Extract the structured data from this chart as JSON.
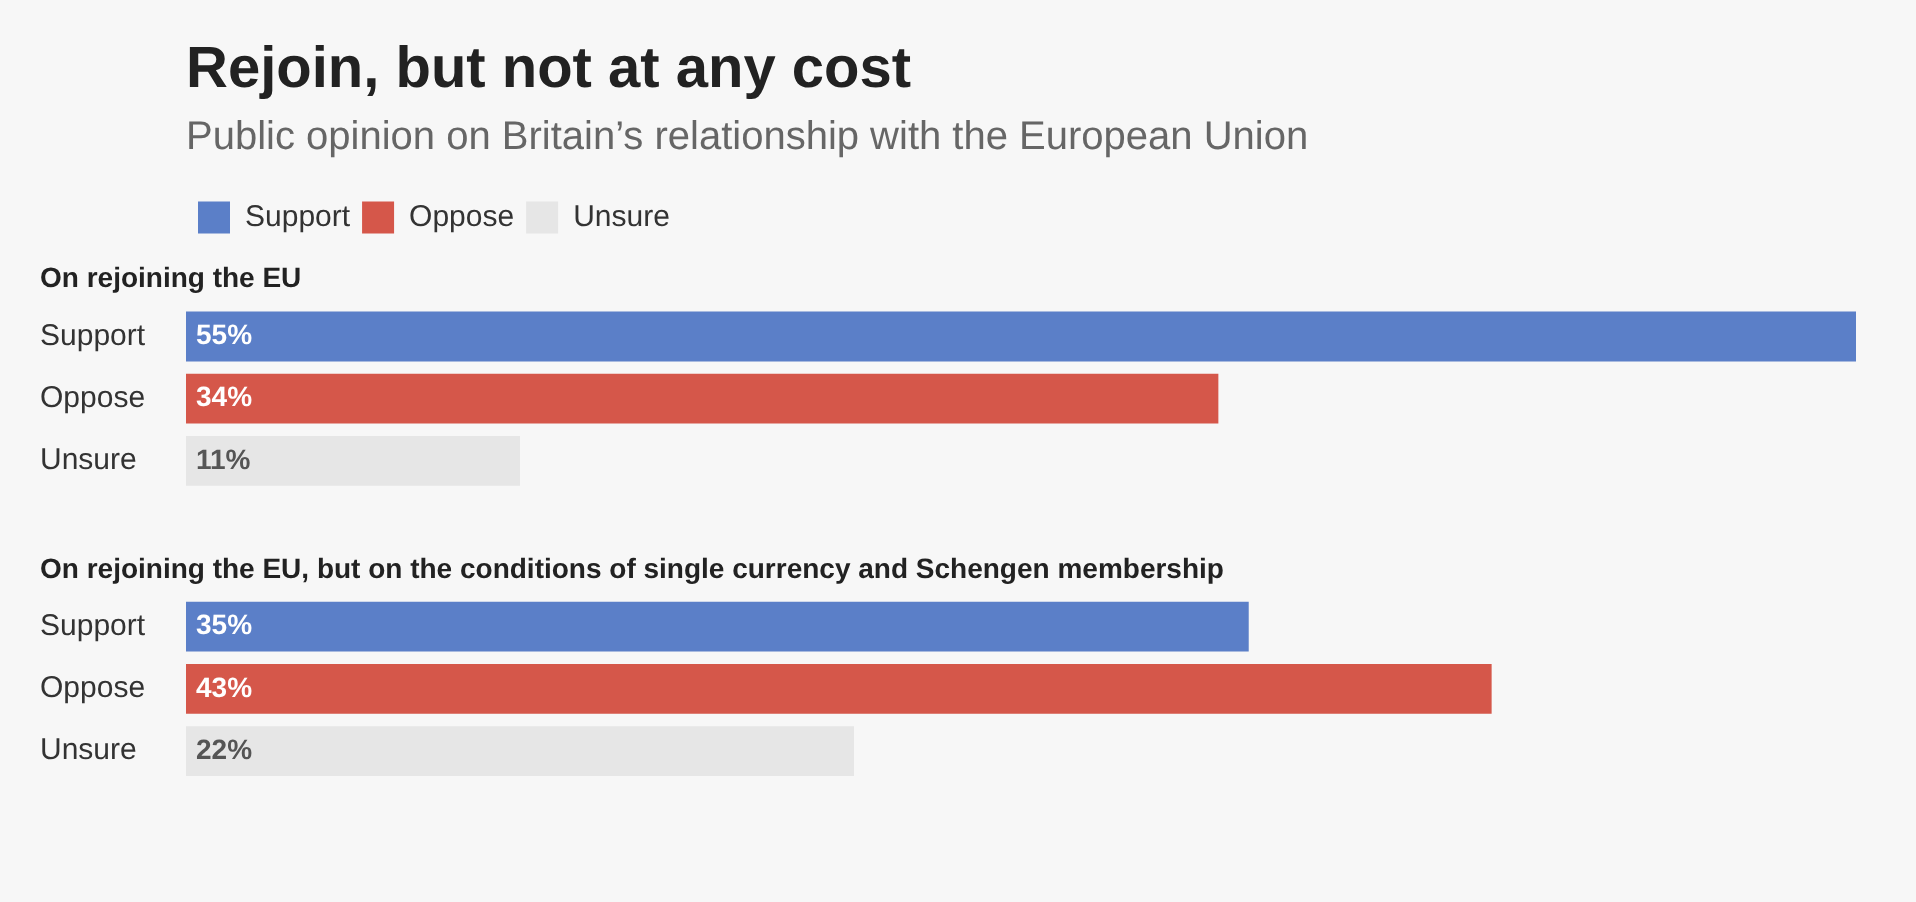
{
  "chart_data": {
    "type": "bar",
    "orientation": "horizontal",
    "title": "Rejoin, but not at any cost",
    "subtitle": "Public opinion on Britain’s relationship with the European Union",
    "categories": [
      "On rejoining the EU",
      "On rejoining the EU, but on the conditions of single currency and Schengen membership"
    ],
    "series": [
      {
        "name": "Support",
        "color": "#5b7fc8",
        "values": [
          55,
          35
        ],
        "value_labels": [
          "55%",
          "35%"
        ]
      },
      {
        "name": "Oppose",
        "color": "#d5574a",
        "values": [
          34,
          43
        ],
        "value_labels": [
          "34%",
          "43%"
        ]
      },
      {
        "name": "Unsure",
        "color": "#e6e6e6",
        "values": [
          11,
          22
        ],
        "value_labels": [
          "11%",
          "22%"
        ]
      }
    ],
    "legend": "top left"
  }
}
